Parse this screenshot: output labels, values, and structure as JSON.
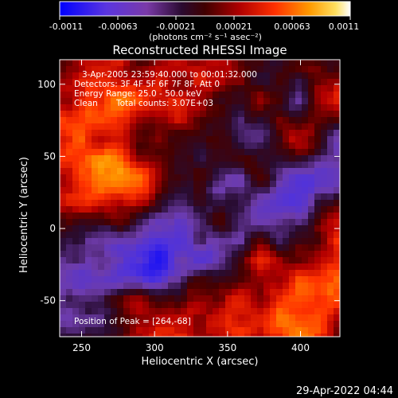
{
  "chart_data": {
    "type": "heatmap",
    "title": "Reconstructed RHESSI Image",
    "xlabel": "Heliocentric X (arcsec)",
    "ylabel": "Heliocentric Y (arcsec)",
    "xlim": [
      235,
      427
    ],
    "ylim": [
      -75,
      117
    ],
    "x_ticks": [
      250,
      300,
      350,
      400
    ],
    "y_ticks": [
      -50,
      0,
      50,
      100
    ],
    "colorbar": {
      "min": -0.0011,
      "max": 0.0011,
      "ticks": [
        "-0.0011",
        "-0.00063",
        "-0.00021",
        "0.00021",
        "0.00063",
        "0.0011"
      ],
      "units": "(photons cm⁻² s⁻¹ asec⁻²)",
      "colormap": [
        "#0000ff",
        "#6a3fd0",
        "#3a0a3a",
        "#8a0000",
        "#ff2a00",
        "#ff9a00",
        "#ffffff"
      ]
    },
    "annotations": {
      "time_range": "3-Apr-2005 23:59:40.000 to 00:01:32.000",
      "detectors": "Detectors: 3F 4F 5F 6F 7F 8F, Att 0",
      "energy_range": "Energy Range: 25.0 - 50.0 keV",
      "clean_label": "Clean",
      "total_counts": "Total counts: 3.07E+03",
      "peak": "Position of Peak = [264,-68]"
    },
    "peak_position": [
      264,
      -68
    ],
    "grid": false,
    "legend": "colorbar-top"
  },
  "footer": {
    "timestamp": "29-Apr-2022 04:44"
  }
}
